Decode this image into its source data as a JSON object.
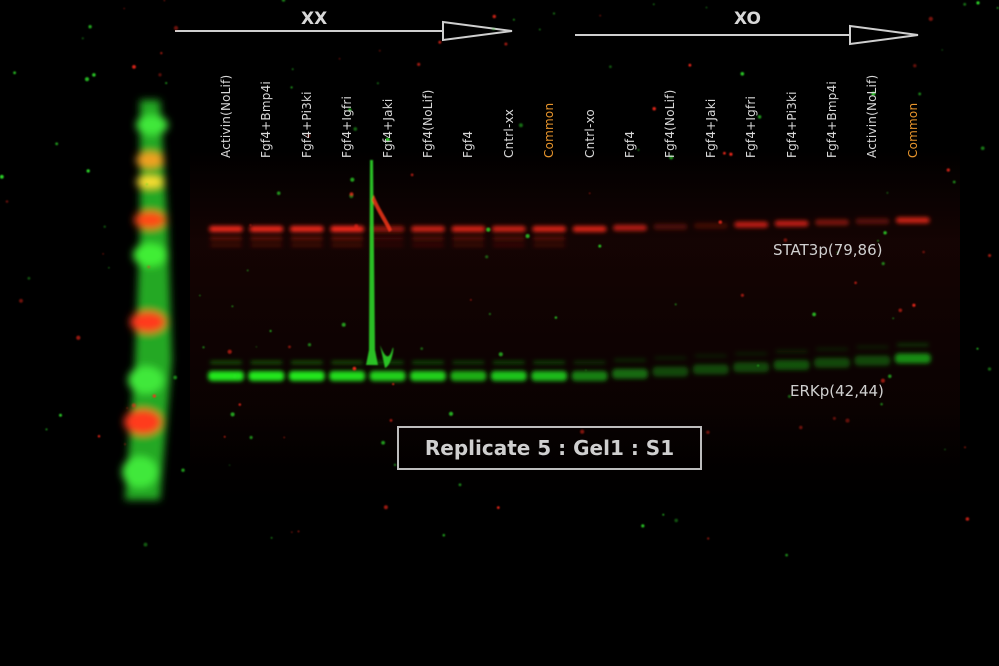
{
  "groups": {
    "left": "XX",
    "right": "XO"
  },
  "lanes": [
    {
      "label": "Activin(NoLif)",
      "highlight": false
    },
    {
      "label": "Fgf4+Bmp4i",
      "highlight": false
    },
    {
      "label": "Fgf4+Pi3ki",
      "highlight": false
    },
    {
      "label": "Fgf4+Igfri",
      "highlight": false
    },
    {
      "label": "Fgf4+Jaki",
      "highlight": false
    },
    {
      "label": "Fgf4(NoLif)",
      "highlight": false
    },
    {
      "label": "Fgf4",
      "highlight": false
    },
    {
      "label": "Cntrl-xx",
      "highlight": false
    },
    {
      "label": "Common",
      "highlight": true
    },
    {
      "label": "Cntrl-xo",
      "highlight": false
    },
    {
      "label": "Fgf4",
      "highlight": false
    },
    {
      "label": "Fgf4(NoLif)",
      "highlight": false
    },
    {
      "label": "Fgf4+Jaki",
      "highlight": false
    },
    {
      "label": "Fgf4+Igfri",
      "highlight": false
    },
    {
      "label": "Fgf4+Pi3ki",
      "highlight": false
    },
    {
      "label": "Fgf4+Bmp4i",
      "highlight": false
    },
    {
      "label": "Activin(NoLif)",
      "highlight": false
    },
    {
      "label": "Common",
      "highlight": true
    }
  ],
  "bands": {
    "stat3": "STAT3p(79,86)",
    "erk": "ERKp(42,44)"
  },
  "replicate": "Replicate 5 : Gel1 : S1",
  "colors": {
    "background": "#000000",
    "stat3_band": "#ff2a1a",
    "erk_band": "#22e81e",
    "common_label": "#e8952c",
    "text": "#d8d8d8"
  },
  "intensities": {
    "stat3": [
      0.95,
      0.95,
      0.95,
      1.0,
      0.55,
      0.8,
      0.85,
      0.8,
      0.85,
      0.85,
      0.7,
      0.25,
      0.2,
      0.75,
      0.75,
      0.45,
      0.3,
      0.8
    ],
    "erk": [
      1.0,
      1.0,
      1.0,
      0.95,
      0.9,
      0.9,
      0.75,
      0.85,
      0.8,
      0.55,
      0.45,
      0.3,
      0.3,
      0.3,
      0.35,
      0.3,
      0.3,
      0.6
    ]
  }
}
